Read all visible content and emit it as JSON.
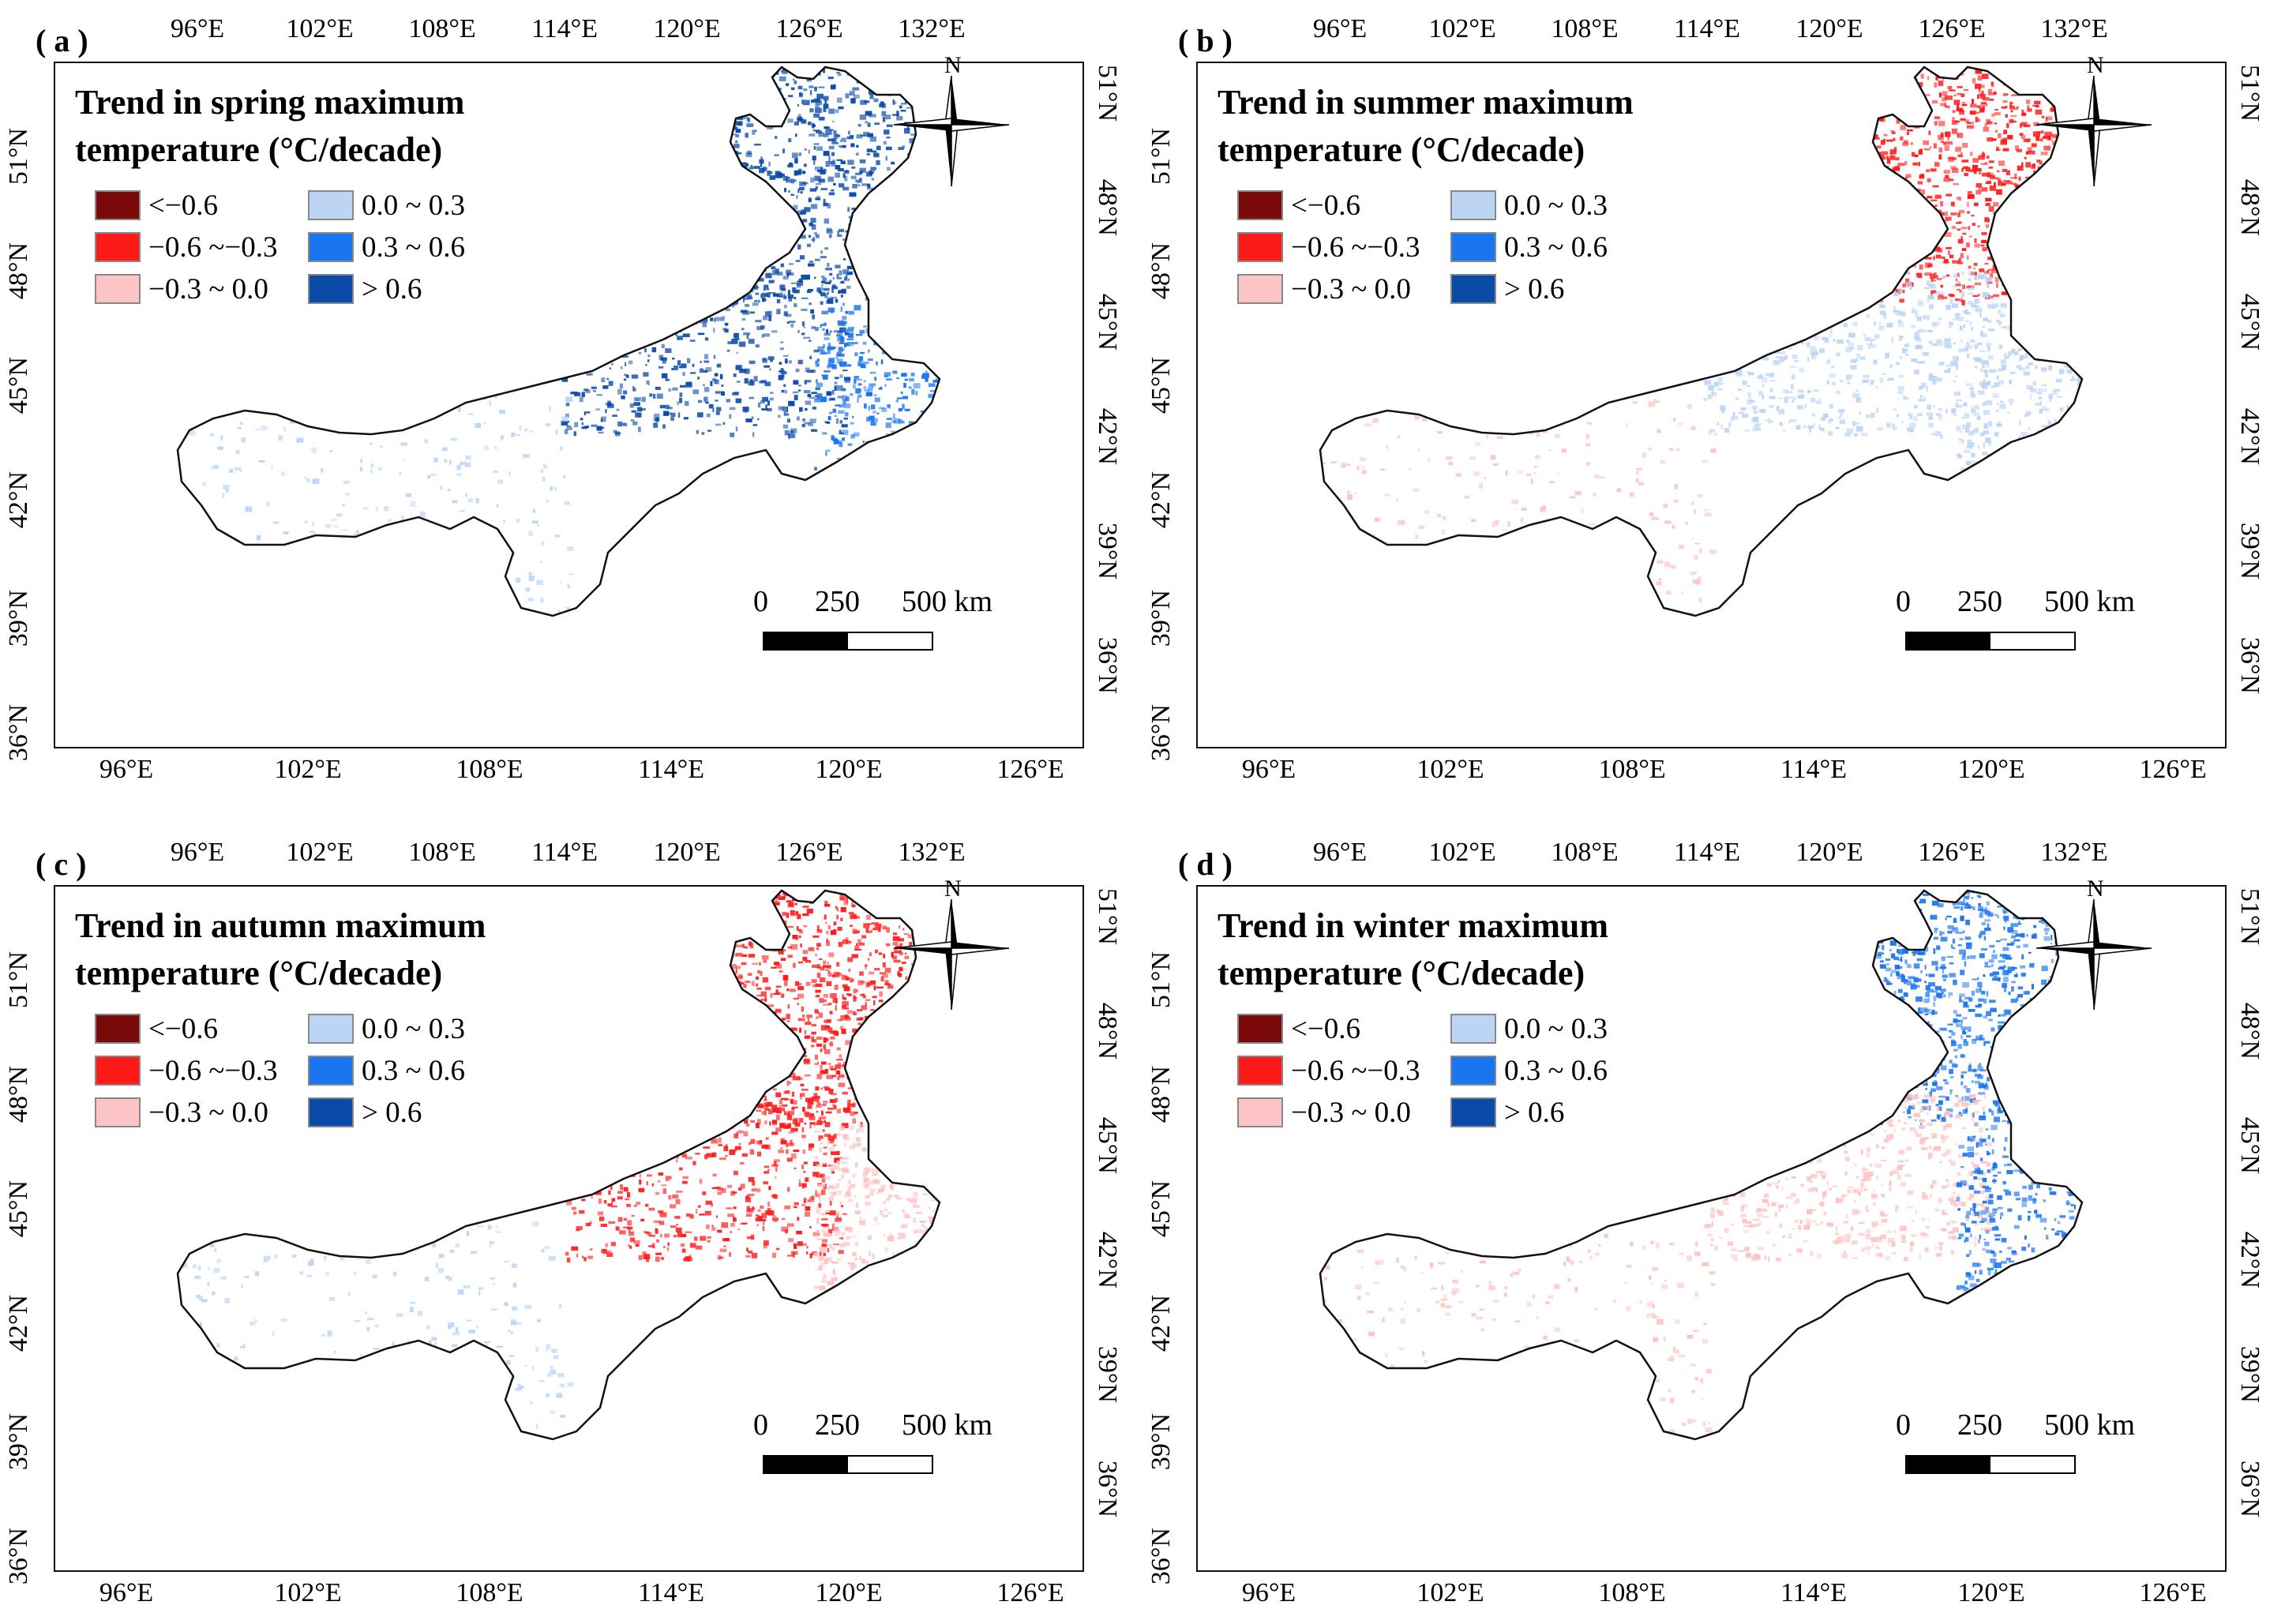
{
  "colors": {
    "lt_neg06": "#7a0a0a",
    "neg06_neg03": "#ff1a1a",
    "neg03_0": "#fcc4c4",
    "0_03": "#bcd5f5",
    "03_06": "#1a75f0",
    "gt06": "#0a4aa8",
    "outline": "#111111"
  },
  "axes": {
    "top_ticks": [
      "96°E",
      "102°E",
      "108°E",
      "114°E",
      "120°E",
      "126°E",
      "132°E"
    ],
    "bottom_ticks": [
      "96°E",
      "102°E",
      "108°E",
      "114°E",
      "120°E",
      "126°E"
    ],
    "left_ticks": [
      "51°N",
      "48°N",
      "45°N",
      "42°N",
      "39°N",
      "36°N"
    ],
    "right_ticks": [
      "51°N",
      "48°N",
      "45°N",
      "42°N",
      "39°N",
      "36°N"
    ]
  },
  "legend": {
    "items": [
      {
        "label": "<−0.6",
        "color_key": "lt_neg06"
      },
      {
        "label": "−0.6 ~−0.3",
        "color_key": "neg06_neg03"
      },
      {
        "label": "−0.3 ~ 0.0",
        "color_key": "neg03_0"
      },
      {
        "label": "0.0 ~ 0.3",
        "color_key": "0_03"
      },
      {
        "label": "0.3 ~ 0.6",
        "color_key": "03_06"
      },
      {
        "label": "> 0.6",
        "color_key": "gt06"
      }
    ]
  },
  "compass": {
    "north": "N"
  },
  "scale": {
    "labels": [
      "0",
      "250",
      "500 km"
    ]
  },
  "panels": [
    {
      "label": "( a )",
      "title_line1": "Trend in spring maximum",
      "title_line2": "temperature (°C/decade)",
      "ne_color": "gt06",
      "mid_color": "gt06",
      "sw_color": "0_03",
      "east_color": "03_06"
    },
    {
      "label": "( b )",
      "title_line1": "Trend in summer maximum",
      "title_line2": "temperature (°C/decade)",
      "ne_color": "neg06_neg03",
      "mid_color": "0_03",
      "sw_color": "neg03_0",
      "east_color": "0_03"
    },
    {
      "label": "( c )",
      "title_line1": "Trend in autumn maximum",
      "title_line2": "temperature (°C/decade)",
      "ne_color": "neg06_neg03",
      "mid_color": "neg06_neg03",
      "sw_color": "0_03",
      "east_color": "neg03_0"
    },
    {
      "label": "( d )",
      "title_line1": "Trend in winter maximum",
      "title_line2": "temperature (°C/decade)",
      "ne_color": "03_06",
      "mid_color": "neg03_0",
      "sw_color": "neg03_0",
      "east_color": "03_06"
    }
  ]
}
